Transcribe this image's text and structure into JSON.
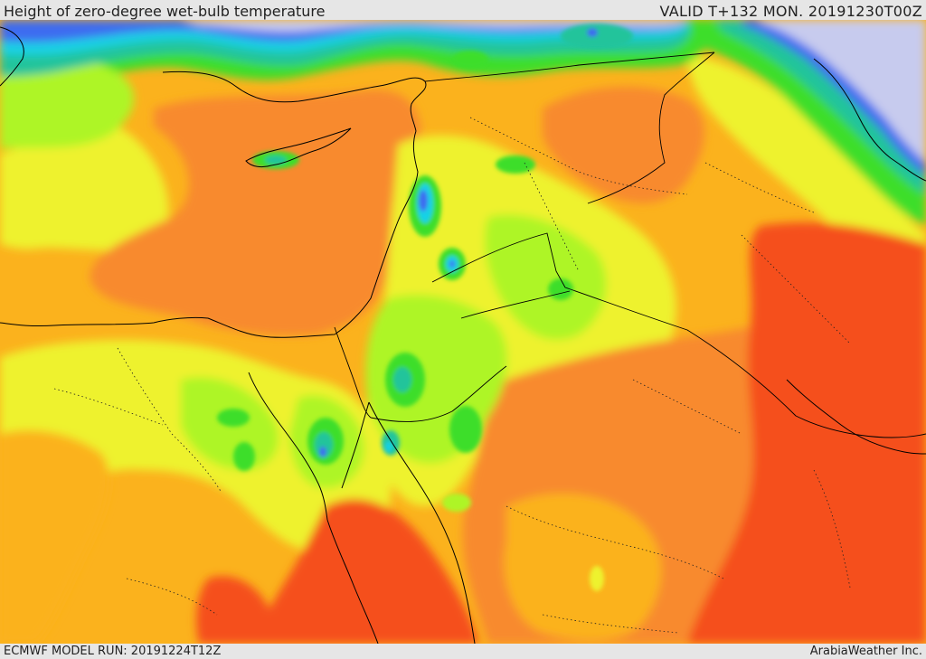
{
  "header": {
    "title": "Height of zero-degree wet-bulb temperature",
    "valid": "VALID T+132 MON. 20191230T00Z"
  },
  "footer": {
    "model_run": "ECMWF MODEL RUN: 20191224T12Z",
    "credit": "ArabiaWeather Inc."
  },
  "colors": {
    "deep_red": "#f5501a",
    "red_orange": "#f88a2e",
    "orange": "#fbb21d",
    "yellow": "#eef22e",
    "lime": "#aef525",
    "green": "#3cde2c",
    "teal": "#22c49b",
    "cyan": "#18d2e6",
    "blue": "#3c6cf0",
    "lavender": "#c7cbee",
    "border_line": "#000000"
  }
}
